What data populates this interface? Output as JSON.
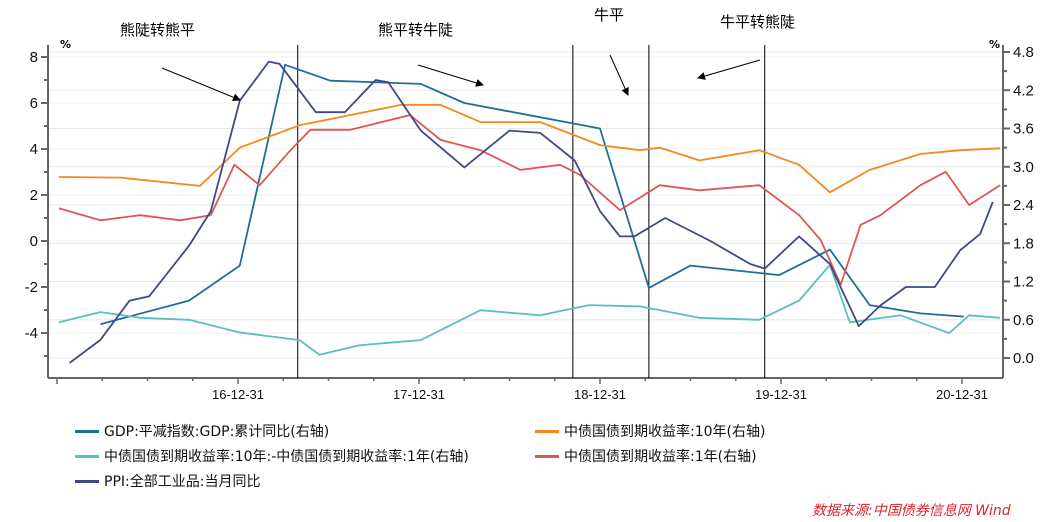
{
  "chart_data": {
    "type": "line",
    "left_axis": {
      "unit": "%",
      "range": [
        -5.5,
        8
      ],
      "ticks": [
        -4,
        -2,
        0,
        2,
        4,
        6,
        8
      ]
    },
    "right_axis": {
      "unit": "%",
      "range": [
        0,
        4.8
      ],
      "ticks": [
        "0.0",
        "0.6",
        "1.2",
        "1.8",
        "2.4",
        "3.0",
        "3.6",
        "4.2",
        "4.8"
      ]
    },
    "x_ticks": [
      {
        "label": "16-12-31",
        "year": 2017.0
      },
      {
        "label": "17-12-31",
        "year": 2018.0
      },
      {
        "label": "18-12-31",
        "year": 2019.0
      },
      {
        "label": "19-12-31",
        "year": 2020.0
      },
      {
        "label": "20-12-31",
        "year": 2021.0
      }
    ],
    "phase_lines": [
      2017.33,
      2018.85,
      2019.27,
      2019.91
    ],
    "annotations": [
      "熊陡转熊平",
      "熊平转牛陡",
      "牛平",
      "牛平转熊陡"
    ],
    "series": [
      {
        "name": "GDP:平减指数:GDP:累计同比(右轴)",
        "axis": "right",
        "color": "#1f6e99",
        "x": [
          2016.24,
          2016.73,
          2017.01,
          2017.26,
          2017.51,
          2018.01,
          2018.25,
          2019.0,
          2019.27,
          2019.5,
          2019.99,
          2020.27,
          2020.49,
          2020.77,
          2021.01
        ],
        "y": [
          0.53,
          0.9,
          1.45,
          4.6,
          4.35,
          4.3,
          4.0,
          3.6,
          1.1,
          1.45,
          1.3,
          1.7,
          0.83,
          0.7,
          0.65
        ]
      },
      {
        "name": "中债国债到期收益率:10年(右轴)",
        "axis": "right",
        "color": "#f28a1c",
        "x": [
          2016.01,
          2016.35,
          2016.79,
          2017.01,
          2017.34,
          2017.9,
          2018.12,
          2018.34,
          2018.67,
          2019.0,
          2019.22,
          2019.33,
          2019.55,
          2019.88,
          2020.1,
          2020.27,
          2020.49,
          2020.77,
          2020.99,
          2021.21
        ],
        "y": [
          2.84,
          2.83,
          2.7,
          3.3,
          3.65,
          3.97,
          3.97,
          3.7,
          3.7,
          3.34,
          3.26,
          3.3,
          3.1,
          3.26,
          3.03,
          2.6,
          2.95,
          3.2,
          3.26,
          3.29
        ]
      },
      {
        "name": "中债国债到期收益率:10年:-中债国债到期收益率:1年(右轴)",
        "axis": "right",
        "color": "#5bbfbe",
        "x": [
          2016.01,
          2016.24,
          2016.46,
          2016.73,
          2017.01,
          2017.34,
          2017.45,
          2017.67,
          2018.01,
          2018.34,
          2018.67,
          2018.94,
          2019.22,
          2019.55,
          2019.88,
          2020.1,
          2020.27,
          2020.38,
          2020.66,
          2020.93,
          2021.04,
          2021.21
        ],
        "y": [
          0.56,
          0.72,
          0.63,
          0.6,
          0.4,
          0.28,
          0.05,
          0.2,
          0.28,
          0.75,
          0.67,
          0.83,
          0.81,
          0.63,
          0.6,
          0.9,
          1.46,
          0.56,
          0.67,
          0.39,
          0.67,
          0.63
        ]
      },
      {
        "name": "中债国债到期收益率:1年(右轴)",
        "axis": "right",
        "color": "#e05656",
        "x": [
          2016.01,
          2016.24,
          2016.46,
          2016.68,
          2016.85,
          2016.98,
          2017.12,
          2017.29,
          2017.4,
          2017.62,
          2017.95,
          2018.12,
          2018.34,
          2018.56,
          2018.78,
          2018.89,
          2019.11,
          2019.33,
          2019.55,
          2019.88,
          2020.1,
          2020.22,
          2020.33,
          2020.44,
          2020.55,
          2020.77,
          2020.91,
          2021.04,
          2021.21
        ],
        "y": [
          2.35,
          2.16,
          2.24,
          2.16,
          2.24,
          3.03,
          2.71,
          3.26,
          3.58,
          3.58,
          3.81,
          3.42,
          3.26,
          2.95,
          3.03,
          2.87,
          2.32,
          2.71,
          2.63,
          2.71,
          2.24,
          1.85,
          1.15,
          2.09,
          2.24,
          2.71,
          2.92,
          2.4,
          2.71
        ]
      },
      {
        "name": "PPI:全部工业品:当月同比",
        "axis": "left",
        "color": "#3f4a85",
        "x": [
          2016.07,
          2016.24,
          2016.4,
          2016.51,
          2016.73,
          2016.85,
          2017.01,
          2017.17,
          2017.23,
          2017.43,
          2017.59,
          2017.76,
          2017.83,
          2018.01,
          2018.25,
          2018.5,
          2018.67,
          2018.86,
          2019.0,
          2019.11,
          2019.19,
          2019.36,
          2019.61,
          2019.83,
          2019.91,
          2020.1,
          2020.27,
          2020.43,
          2020.55,
          2020.69,
          2020.85,
          2020.99,
          2021.1,
          2021.17
        ],
        "y": [
          -5.3,
          -4.3,
          -2.6,
          -2.4,
          -0.2,
          1.3,
          6.1,
          7.8,
          7.7,
          5.6,
          5.6,
          7.0,
          6.9,
          4.8,
          3.2,
          4.8,
          4.7,
          3.5,
          1.3,
          0.2,
          0.2,
          1.0,
          0.0,
          -1.0,
          -1.2,
          0.2,
          -1.0,
          -3.7,
          -2.8,
          -2.0,
          -2.0,
          -0.4,
          0.3,
          1.7
        ]
      }
    ]
  },
  "source": "数据来源:中国债券信息网 Wind"
}
